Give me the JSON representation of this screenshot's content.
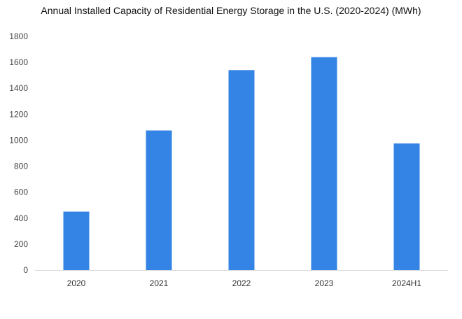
{
  "chart_data": {
    "type": "bar",
    "title": "Annual Installed Capacity of Residential Energy Storage in the U.S. (2020-2024) (MWh)",
    "xlabel": "",
    "ylabel": "",
    "categories": [
      "2020",
      "2021",
      "2022",
      "2023",
      "2024H1"
    ],
    "values": [
      450,
      1075,
      1540,
      1640,
      975
    ],
    "ylim": [
      0,
      1800
    ],
    "yticks": [
      "0",
      "200",
      "400",
      "600",
      "800",
      "1000",
      "1200",
      "1400",
      "1600",
      "1800"
    ],
    "ytick_values": [
      0,
      200,
      400,
      600,
      800,
      1000,
      1200,
      1400,
      1600,
      1800
    ],
    "grid": false,
    "legend": "none",
    "colors": {
      "bar": "#3484E5",
      "axis": "#D9D9D9",
      "title": "#111111",
      "tick": "#444444"
    }
  }
}
